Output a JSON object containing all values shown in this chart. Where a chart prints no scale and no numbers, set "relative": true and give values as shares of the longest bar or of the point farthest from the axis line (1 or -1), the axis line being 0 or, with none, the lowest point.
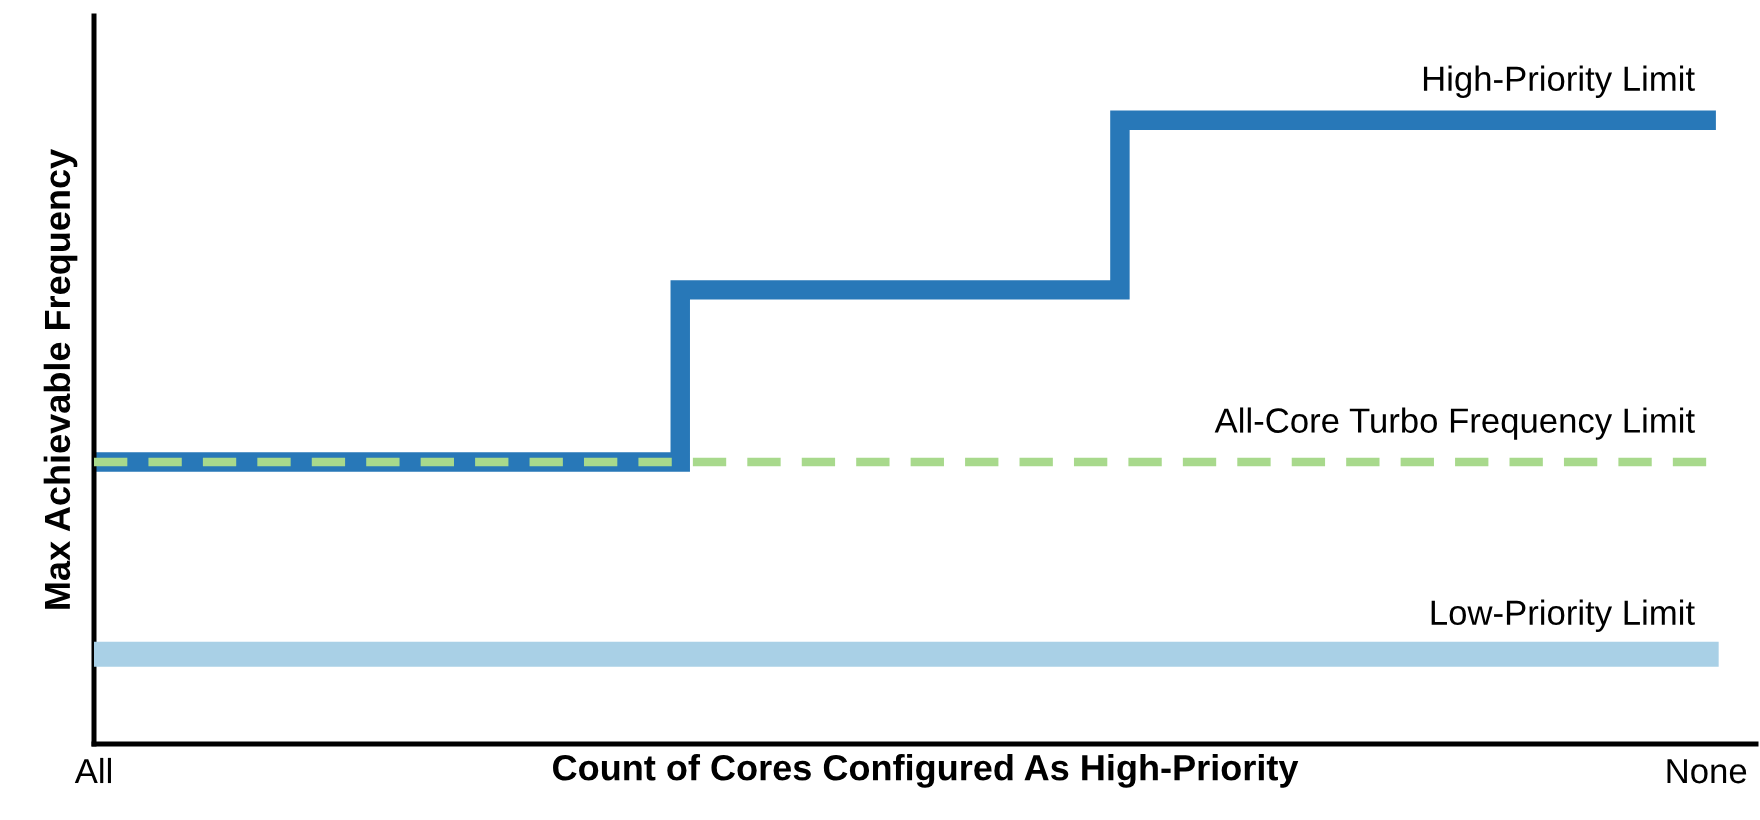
{
  "chart_data": {
    "type": "step",
    "relative": true,
    "xlabel": "Count of Cores Configured As High-Priority",
    "ylabel": "Max Achievable Frequency",
    "categories": [
      "All",
      null,
      null,
      null,
      null,
      null,
      null,
      null,
      null,
      null,
      null,
      "None"
    ],
    "series": [
      {
        "name": "High-Priority Limit",
        "color": "#2878b8",
        "line_style": "solid",
        "values": [
          0.452,
          0.452,
          0.452,
          0.452,
          0.728,
          0.728,
          0.728,
          1,
          1,
          1,
          1,
          1
        ]
      },
      {
        "name": "All-Core Turbo Frequency Limit",
        "type": "line",
        "color": "#a8d98c",
        "line_style": "dashed",
        "values": [
          0.452,
          0.452,
          0.452,
          0.452,
          0.452,
          0.452,
          0.452,
          0.452,
          0.452,
          0.452,
          0.452,
          0.452
        ]
      },
      {
        "name": "Low-Priority Limit",
        "type": "line",
        "color": "#a9d0e6",
        "line_style": "solid",
        "values": [
          0.144,
          0.144,
          0.144,
          0.144,
          0.144,
          0.144,
          0.144,
          0.144,
          0.144,
          0.144,
          0.144,
          0.144
        ]
      }
    ],
    "grid": false,
    "legend": false,
    "marker": "none"
  }
}
